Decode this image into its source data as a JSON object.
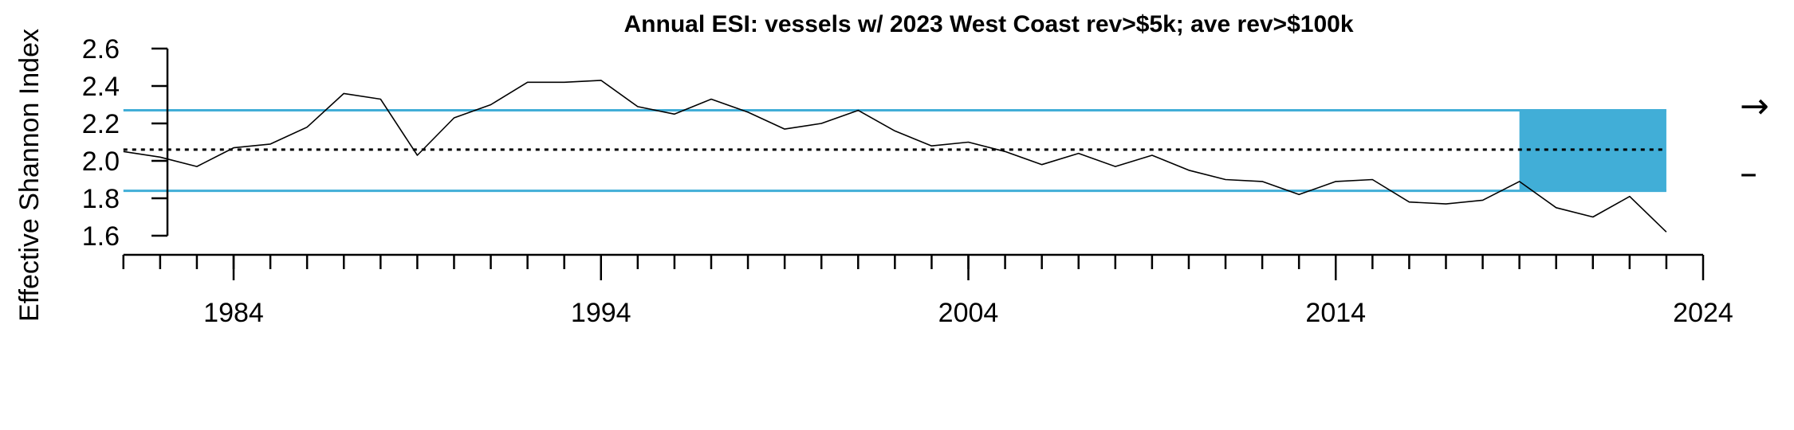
{
  "chart_data": {
    "type": "line",
    "title": "Annual ESI: vessels w/ 2023 West Coast rev>$5k; ave rev>$100k",
    "xlabel": "",
    "ylabel": "Effective Shannon Index",
    "xlim": [
      1981,
      2024
    ],
    "ylim": [
      1.6,
      2.6
    ],
    "x_ticks": [
      1984,
      1994,
      2004,
      2014,
      2024
    ],
    "y_ticks": [
      "1.6",
      "1.8",
      "2.0",
      "2.2",
      "2.4",
      "2.6"
    ],
    "series": [
      {
        "x": [
          1981,
          1982,
          1983,
          1984,
          1985,
          1986,
          1987,
          1988,
          1989,
          1990,
          1991,
          1992,
          1993,
          1994,
          1995,
          1996,
          1997,
          1998,
          1999,
          2000,
          2001,
          2002,
          2003,
          2004,
          2005,
          2006,
          2007,
          2008,
          2009,
          2010,
          2011,
          2012,
          2013,
          2014,
          2015,
          2016,
          2017,
          2018,
          2019,
          2020,
          2021,
          2022,
          2023
        ],
        "values": [
          2.05,
          2.02,
          1.97,
          2.07,
          2.09,
          2.18,
          2.36,
          2.33,
          2.03,
          2.23,
          2.3,
          2.42,
          2.42,
          2.43,
          2.29,
          2.25,
          2.33,
          2.26,
          2.17,
          2.2,
          2.27,
          2.16,
          2.08,
          2.1,
          2.05,
          1.98,
          2.04,
          1.97,
          2.03,
          1.95,
          1.9,
          1.89,
          1.82,
          1.89,
          1.9,
          1.78,
          1.77,
          1.79,
          1.89,
          1.75,
          1.7,
          1.81,
          1.62
        ],
        "color": "#000000"
      }
    ],
    "reference_lines": {
      "mean": 2.06,
      "upper": 2.27,
      "lower": 1.84,
      "mean_style": "dotted",
      "band_color": "#41AED7"
    },
    "highlight_range": {
      "x_start": 2019,
      "x_end": 2023,
      "y_low": 1.84,
      "y_high": 2.27,
      "color": "#41AED7"
    },
    "trend_indicators": {
      "mean": "→",
      "sd": "–"
    }
  }
}
